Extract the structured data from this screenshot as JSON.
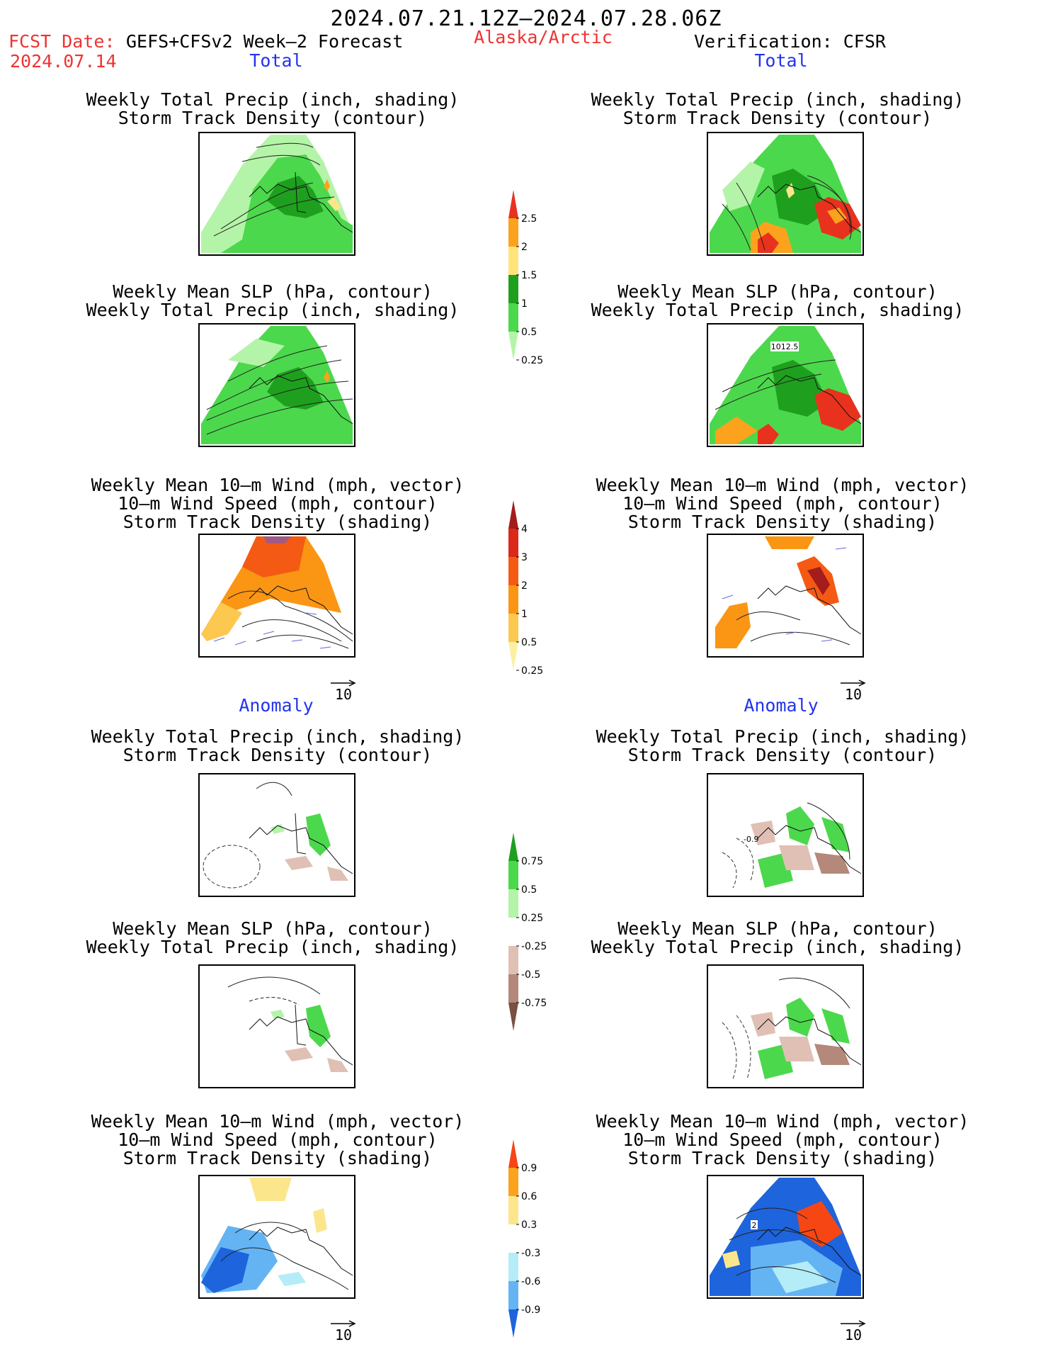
{
  "header": {
    "date_range": "2024.07.21.12Z‒2024.07.28.06Z",
    "fcst_label": "FCST Date:",
    "model": "GEFS+CFSv2 Week‒2 Forecast",
    "fcst_date": "2024.07.14",
    "region": "Alaska/Arctic",
    "verification": "Verification: CFSR"
  },
  "sections": {
    "total": "Total",
    "anomaly": "Anomaly"
  },
  "panel_titles": {
    "precip_storm": [
      "Weekly Total Precip (inch, shading)",
      "Storm Track Density (contour)"
    ],
    "slp_precip": [
      "Weekly Mean SLP (hPa, contour)",
      "Weekly Total Precip (inch, shading)"
    ],
    "wind_storm": [
      "Weekly Mean 10‒m Wind (mph, vector)",
      "10‒m Wind Speed (mph, contour)",
      "Storm Track Density (shading)"
    ]
  },
  "vector_reference": "10",
  "contour_label": "1012.5",
  "anomaly_contour_label": "-0.9",
  "wind_contour_label": "2",
  "colorbars": [
    {
      "id": "total-precip",
      "labels": [
        "2.5",
        "2",
        "1.5",
        "1",
        "0.5",
        "0.25"
      ],
      "colors": [
        "#e8321e",
        "#fca21c",
        "#ffe47a",
        "#1ea01e",
        "#4cd84c",
        "#b4f4a8"
      ]
    },
    {
      "id": "storm-density",
      "labels": [
        "4",
        "3",
        "2",
        "1",
        "0.5",
        "0.25"
      ],
      "colors": [
        "#a51c1c",
        "#dc2818",
        "#f55a14",
        "#fa9614",
        "#fcc850",
        "#fcf0a0"
      ]
    },
    {
      "id": "precip-anomaly",
      "labels": [
        "0.75",
        "0.5",
        "0.25",
        "-0.25",
        "-0.5",
        "-0.75"
      ],
      "colors": [
        "#1ea01e",
        "#4cd84c",
        "#b4f4a8",
        "#ffffff",
        "#e0c0b4",
        "#b4887a",
        "#7a5044"
      ]
    },
    {
      "id": "storm-anomaly",
      "labels": [
        "0.9",
        "0.6",
        "0.3",
        "-0.3",
        "-0.6",
        "-0.9"
      ],
      "colors": [
        "#f54614",
        "#fca21c",
        "#fce68c",
        "#ffffff",
        "#b4ecf8",
        "#64b4f4",
        "#1e64dc"
      ]
    }
  ]
}
